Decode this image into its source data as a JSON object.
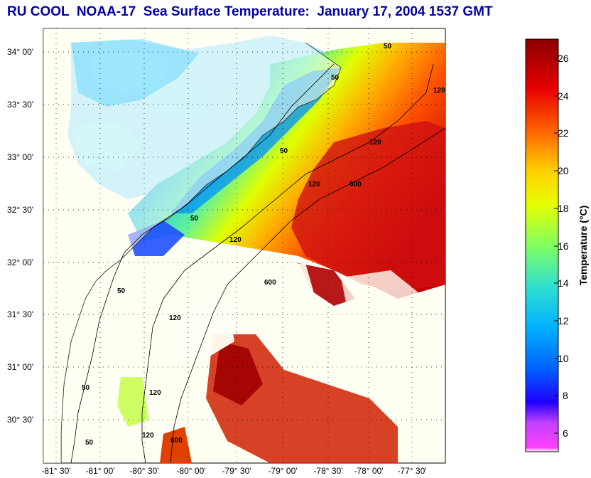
{
  "title": "RU COOL  NOAA-17  Sea Surface Temperature:  January 17, 2004 1537 GMT",
  "colorbar": {
    "label": "Temperature (°C)",
    "ticks": [
      "6",
      "8",
      "10",
      "12",
      "14",
      "16",
      "18",
      "20",
      "22",
      "24",
      "26"
    ],
    "colors": [
      "#ff40ff",
      "#0000ff",
      "#0050ff",
      "#00b0ff",
      "#30e0d0",
      "#80ff60",
      "#e0ff00",
      "#ffd000",
      "#ff6000",
      "#e00000",
      "#900000"
    ]
  },
  "axes": {
    "lat_ticks": [
      "34° 00'",
      "33° 30'",
      "33° 00'",
      "32° 30'",
      "32° 00'",
      "31° 30'",
      "31° 00'",
      "30° 30'"
    ],
    "lon_ticks": [
      "-81° 30'",
      "-81° 00'",
      "-80° 30'",
      "-80° 00'",
      "-79° 30'",
      "-79° 00'",
      "-78° 30'",
      "-78° 00'",
      "-77° 30'"
    ]
  },
  "contour_labels": [
    "50",
    "50",
    "50",
    "50",
    "50",
    "50",
    "50",
    "120",
    "120",
    "120",
    "120",
    "120",
    "120",
    "120",
    "600",
    "600",
    "600"
  ]
}
